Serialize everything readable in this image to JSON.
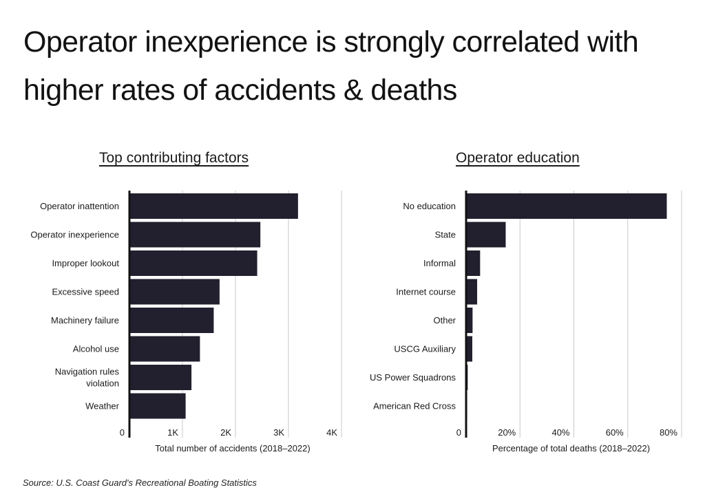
{
  "title_lines": [
    "Operator inexperience is strongly correlated with",
    "higher rates of accidents & deaths"
  ],
  "source": "Source: U.S. Coast Guard's Recreational Boating Statistics",
  "colors": {
    "bar": "#221f2e",
    "grid": "#c8c8c8",
    "axis": "#111111"
  },
  "chart_data": [
    {
      "type": "bar",
      "orientation": "horizontal",
      "title": "Top contributing factors",
      "xlabel": "Total number of accidents (2018–2022)",
      "categories": [
        "Operator inattention",
        "Operator inexperience",
        "Improper lookout",
        "Excessive speed",
        "Machinery failure",
        "Alcohol use",
        "Navigation rules\nviolation",
        "Weather"
      ],
      "values": [
        3180,
        2470,
        2410,
        1700,
        1590,
        1330,
        1170,
        1060
      ],
      "xlim": [
        0,
        4000
      ],
      "ticks": [
        0,
        1000,
        2000,
        3000,
        4000
      ],
      "tick_labels": [
        "0",
        "1K",
        "2K",
        "3K",
        "4K"
      ],
      "grid": true
    },
    {
      "type": "bar",
      "orientation": "horizontal",
      "title": "Operator education",
      "xlabel": "Percentage of total deaths (2018–2022)",
      "categories": [
        "No education",
        "State",
        "Informal",
        "Internet course",
        "Other",
        "USCG Auxiliary",
        "US Power Squadrons",
        "American Red Cross"
      ],
      "values": [
        74.5,
        14.7,
        5.2,
        4.1,
        2.4,
        2.3,
        0.6,
        0.4
      ],
      "xlim": [
        0,
        80
      ],
      "ticks": [
        0,
        20,
        40,
        60,
        80
      ],
      "tick_labels": [
        "0",
        "20%",
        "40%",
        "60%",
        "80%"
      ],
      "grid": true
    }
  ]
}
